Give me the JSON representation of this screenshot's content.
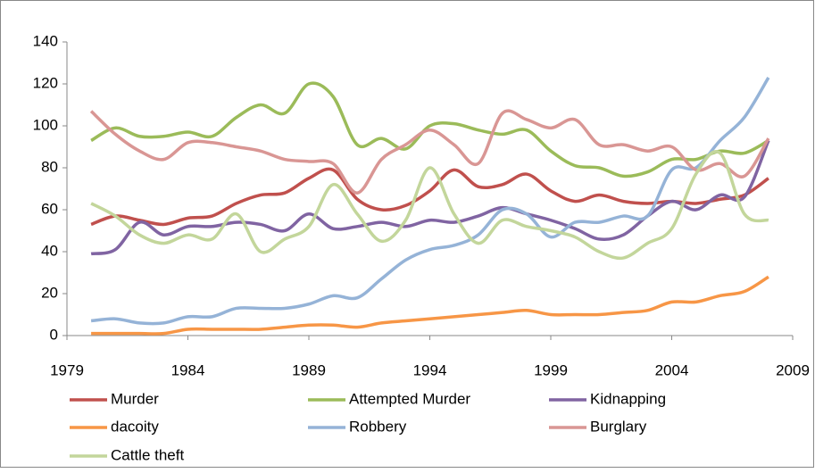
{
  "chart_data": {
    "type": "line",
    "x": [
      1980,
      1981,
      1982,
      1983,
      1984,
      1985,
      1986,
      1987,
      1988,
      1989,
      1990,
      1991,
      1992,
      1993,
      1994,
      1995,
      1996,
      1997,
      1998,
      1999,
      2000,
      2001,
      2002,
      2003,
      2004,
      2005,
      2006,
      2007,
      2008
    ],
    "series": [
      {
        "name": "Murder",
        "color": "#c0504d",
        "values": [
          53,
          57,
          55,
          53,
          56,
          57,
          63,
          67,
          68,
          75,
          79,
          65,
          60,
          62,
          69,
          79,
          71,
          72,
          77,
          69,
          64,
          67,
          64,
          63,
          64,
          63,
          65,
          67,
          75
        ]
      },
      {
        "name": "Attempted Murder",
        "color": "#9bbb59",
        "values": [
          93,
          99,
          95,
          95,
          97,
          95,
          104,
          110,
          106,
          120,
          114,
          91,
          94,
          89,
          100,
          101,
          98,
          96,
          98,
          88,
          81,
          80,
          76,
          78,
          84,
          84,
          88,
          87,
          93
        ]
      },
      {
        "name": "Kidnapping",
        "color": "#8064a2",
        "values": [
          39,
          41,
          54,
          48,
          52,
          52,
          54,
          53,
          50,
          58,
          51,
          52,
          54,
          52,
          55,
          54,
          57,
          61,
          58,
          55,
          51,
          46,
          48,
          57,
          64,
          60,
          67,
          66,
          93
        ]
      },
      {
        "name": "dacoity",
        "color": "#f79646",
        "values": [
          1,
          1,
          1,
          1,
          3,
          3,
          3,
          3,
          4,
          5,
          5,
          4,
          6,
          7,
          8,
          9,
          10,
          11,
          12,
          10,
          10,
          10,
          11,
          12,
          16,
          16,
          19,
          21,
          28
        ]
      },
      {
        "name": "Robbery",
        "color": "#95b3d7",
        "values": [
          7,
          8,
          6,
          6,
          9,
          9,
          13,
          13,
          13,
          15,
          19,
          18,
          27,
          36,
          41,
          43,
          48,
          60,
          58,
          47,
          54,
          54,
          57,
          57,
          79,
          80,
          93,
          104,
          123
        ]
      },
      {
        "name": "Burglary",
        "color": "#d99694",
        "values": [
          107,
          96,
          88,
          84,
          92,
          92,
          90,
          88,
          84,
          83,
          82,
          68,
          84,
          91,
          98,
          91,
          82,
          106,
          103,
          99,
          103,
          91,
          91,
          88,
          90,
          79,
          82,
          76,
          94
        ]
      },
      {
        "name": "Cattle theft",
        "color": "#c3d69b",
        "values": [
          63,
          57,
          48,
          44,
          48,
          46,
          58,
          40,
          46,
          52,
          72,
          58,
          45,
          55,
          80,
          58,
          44,
          55,
          52,
          50,
          47,
          40,
          37,
          44,
          51,
          77,
          87,
          58,
          55
        ]
      }
    ],
    "xlim": [
      1979,
      2009
    ],
    "xticks": [
      1979,
      1984,
      1989,
      1994,
      1999,
      2004,
      2009
    ],
    "ylim": [
      0,
      140
    ],
    "yticks": [
      0,
      20,
      40,
      60,
      80,
      100,
      120,
      140
    ],
    "legend": "bottom"
  }
}
